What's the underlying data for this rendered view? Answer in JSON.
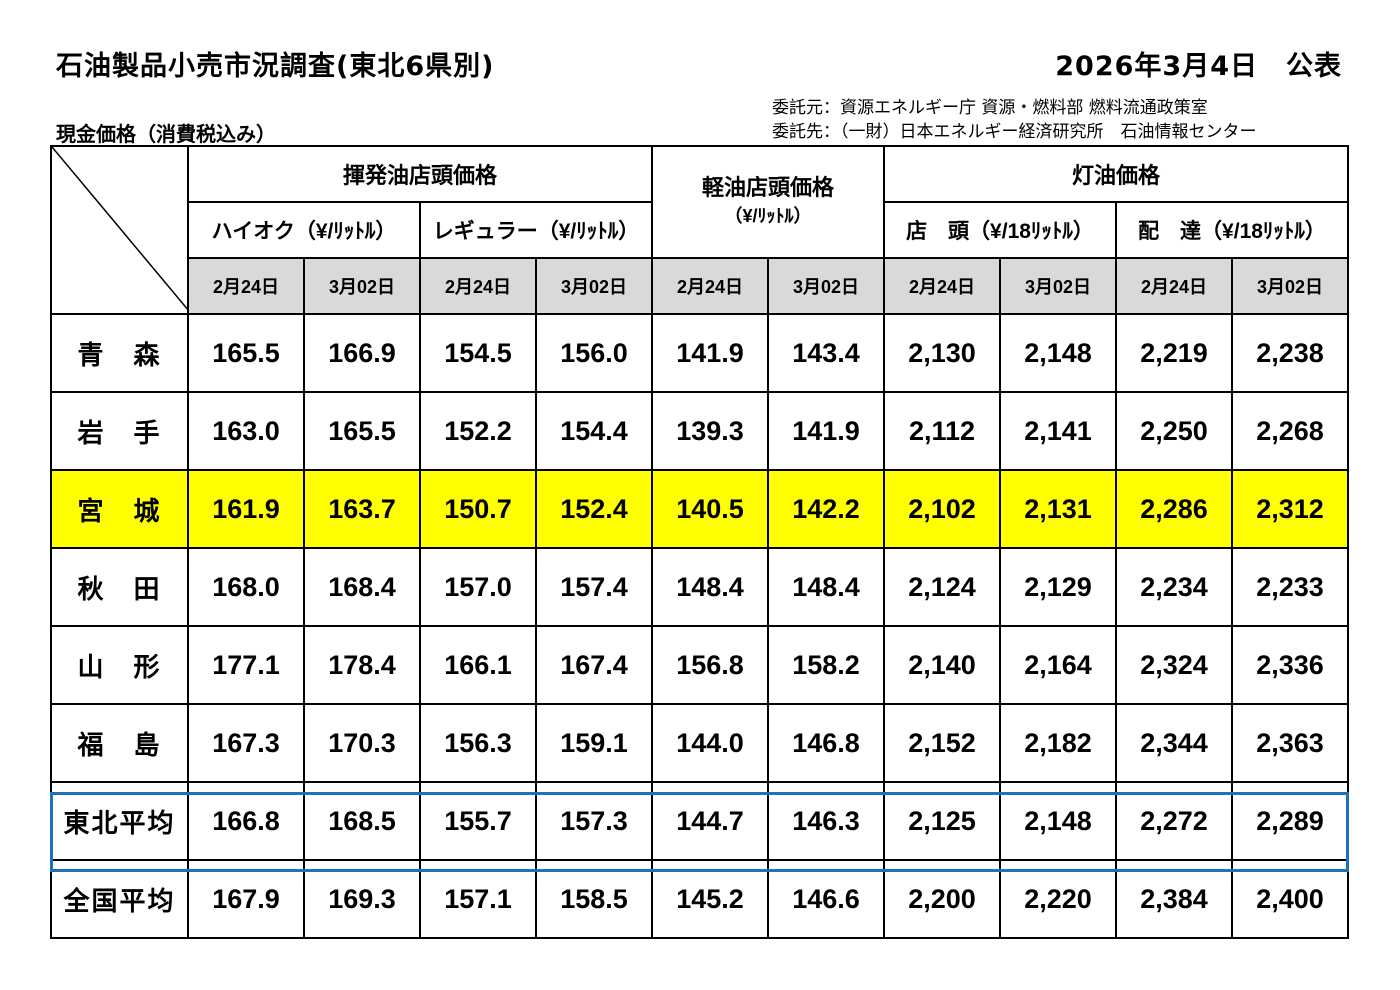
{
  "header": {
    "title": "石油製品小売市況調査(東北6県別)",
    "publish_date": "2026年3月4日　公表",
    "commissioner": "委託元：資源エネルギー庁 資源・燃料部 燃料流通政策室",
    "contractor": "委託先：（一財）日本エネルギー経済研究所　石油情報センター",
    "subtitle": "現金価格（消費税込み）"
  },
  "table": {
    "groups": {
      "gasoline": "揮発油店頭価格",
      "diesel": "軽油店頭価格",
      "diesel_unit": "（¥/ﾘｯﾄﾙ）",
      "kerosene": "灯油価格"
    },
    "subgroups": {
      "high_octane": "ハイオク（¥/ﾘｯﾄﾙ）",
      "regular": "レギュラー（¥/ﾘｯﾄﾙ）",
      "kerosene_store": "店　頭（¥/18ﾘｯﾄﾙ）",
      "kerosene_delivery": "配　達（¥/18ﾘｯﾄﾙ）"
    },
    "dates": [
      "2月24日",
      "3月02日",
      "2月24日",
      "3月02日",
      "2月24日",
      "3月02日",
      "2月24日",
      "3月02日",
      "2月24日",
      "3月02日"
    ],
    "rows": [
      {
        "name": "青　森",
        "values": [
          "165.5",
          "166.9",
          "154.5",
          "156.0",
          "141.9",
          "143.4",
          "2,130",
          "2,148",
          "2,219",
          "2,238"
        ]
      },
      {
        "name": "岩　手",
        "values": [
          "163.0",
          "165.5",
          "152.2",
          "154.4",
          "139.3",
          "141.9",
          "2,112",
          "2,141",
          "2,250",
          "2,268"
        ]
      },
      {
        "name": "宮　城",
        "values": [
          "161.9",
          "163.7",
          "150.7",
          "152.4",
          "140.5",
          "142.2",
          "2,102",
          "2,131",
          "2,286",
          "2,312"
        ]
      },
      {
        "name": "秋　田",
        "values": [
          "168.0",
          "168.4",
          "157.0",
          "157.4",
          "148.4",
          "148.4",
          "2,124",
          "2,129",
          "2,234",
          "2,233"
        ]
      },
      {
        "name": "山　形",
        "values": [
          "177.1",
          "178.4",
          "166.1",
          "167.4",
          "156.8",
          "158.2",
          "2,140",
          "2,164",
          "2,324",
          "2,336"
        ]
      },
      {
        "name": "福　島",
        "values": [
          "167.3",
          "170.3",
          "156.3",
          "159.1",
          "144.0",
          "146.8",
          "2,152",
          "2,182",
          "2,344",
          "2,363"
        ]
      },
      {
        "name": "東北平均",
        "values": [
          "166.8",
          "168.5",
          "155.7",
          "157.3",
          "144.7",
          "146.3",
          "2,125",
          "2,148",
          "2,272",
          "2,289"
        ]
      },
      {
        "name": "全国平均",
        "values": [
          "167.9",
          "169.3",
          "157.1",
          "158.5",
          "145.2",
          "146.6",
          "2,200",
          "2,220",
          "2,384",
          "2,400"
        ]
      }
    ]
  },
  "colors": {
    "highlight_row": "#ffff00",
    "header_date_bg": "#d9d9d9",
    "average_frame": "#1f6fbf"
  }
}
